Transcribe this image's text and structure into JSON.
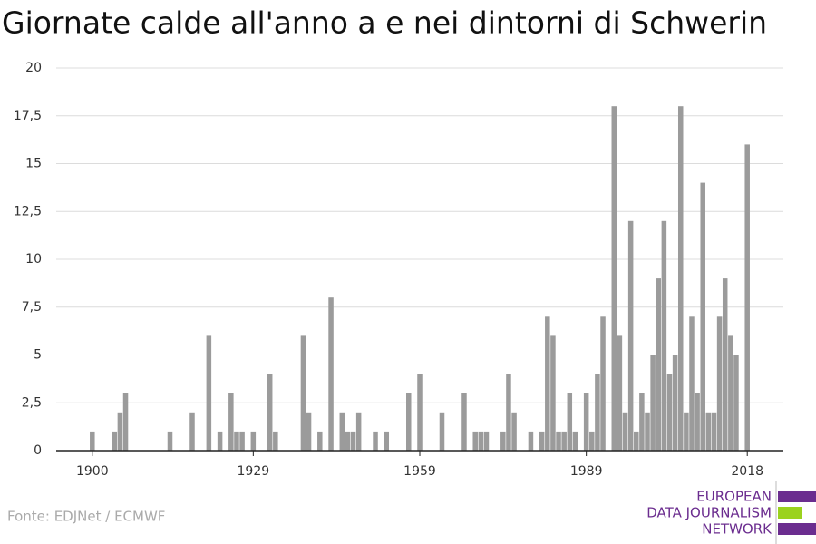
{
  "chart_data": {
    "type": "bar",
    "title": "Giornate calde all'anno a e nei dintorni di Schwerin",
    "x": [
      1900,
      1901,
      1902,
      1903,
      1904,
      1905,
      1906,
      1907,
      1908,
      1909,
      1910,
      1911,
      1912,
      1913,
      1914,
      1915,
      1916,
      1917,
      1918,
      1919,
      1920,
      1921,
      1922,
      1923,
      1924,
      1925,
      1926,
      1927,
      1928,
      1929,
      1930,
      1931,
      1932,
      1933,
      1934,
      1935,
      1936,
      1937,
      1938,
      1939,
      1940,
      1941,
      1942,
      1943,
      1944,
      1945,
      1946,
      1947,
      1948,
      1949,
      1950,
      1951,
      1952,
      1953,
      1954,
      1955,
      1956,
      1957,
      1958,
      1959,
      1960,
      1961,
      1962,
      1963,
      1964,
      1965,
      1966,
      1967,
      1968,
      1969,
      1970,
      1971,
      1972,
      1973,
      1974,
      1975,
      1976,
      1977,
      1978,
      1979,
      1980,
      1981,
      1982,
      1983,
      1984,
      1985,
      1986,
      1987,
      1988,
      1989,
      1990,
      1991,
      1992,
      1993,
      1994,
      1995,
      1996,
      1997,
      1998,
      1999,
      2000,
      2001,
      2002,
      2003,
      2004,
      2005,
      2006,
      2007,
      2008,
      2009,
      2010,
      2011,
      2012,
      2013,
      2014,
      2015,
      2016,
      2017,
      2018
    ],
    "values": [
      1,
      0,
      0,
      0,
      1,
      2,
      3,
      0,
      0,
      0,
      0,
      0,
      0,
      0,
      1,
      0,
      0,
      0,
      2,
      0,
      0,
      6,
      0,
      1,
      0,
      3,
      1,
      1,
      0,
      1,
      0,
      0,
      4,
      1,
      0,
      0,
      0,
      0,
      6,
      2,
      0,
      1,
      0,
      8,
      0,
      2,
      1,
      1,
      2,
      0,
      0,
      1,
      0,
      1,
      0,
      0,
      0,
      3,
      0,
      4,
      0,
      0,
      0,
      2,
      0,
      0,
      0,
      3,
      0,
      1,
      1,
      1,
      0,
      0,
      1,
      4,
      2,
      0,
      0,
      1,
      0,
      1,
      7,
      6,
      1,
      1,
      3,
      1,
      0,
      3,
      1,
      4,
      7,
      0,
      18,
      6,
      2,
      12,
      1,
      3,
      2,
      5,
      9,
      12,
      4,
      5,
      18,
      2,
      7,
      3,
      14,
      2,
      2,
      7,
      9,
      6,
      5,
      0,
      16
    ],
    "color": "#9b9b9b",
    "xlim": [
      1893.5,
      2024.5
    ],
    "xticks": [
      1900,
      1929,
      1959,
      1989,
      2018
    ],
    "ylim": [
      0,
      20
    ],
    "yticks": [
      0,
      {
        "value": 2.5,
        "label": "2,5"
      },
      5,
      {
        "value": 7.5,
        "label": "7,5"
      },
      10,
      {
        "value": 12.5,
        "label": "12,5"
      },
      15,
      {
        "value": 17.5,
        "label": "17,5"
      },
      20
    ],
    "grid": true
  },
  "source": "Fonte: EDJNet / ECMWF",
  "logo": [
    "EUROPEAN",
    "DATA JOURNALISM",
    "NETWORK"
  ]
}
